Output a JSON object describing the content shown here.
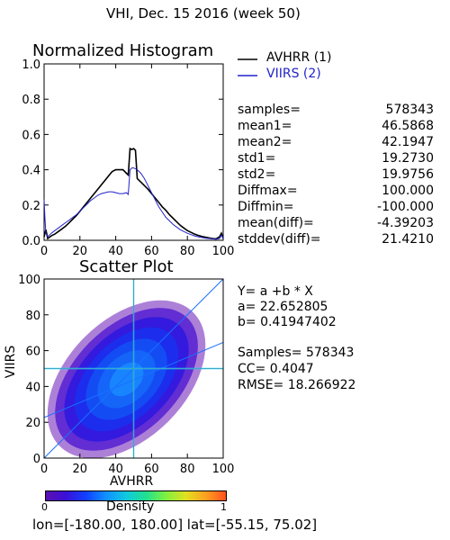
{
  "page_title": "VHI,  Dec. 15 2016 (week 50)",
  "footer": "lon=[-180.00, 180.00] lat=[-55.15, 75.02]",
  "colors": {
    "avhrr": "#000000",
    "viirs": "#2222cc",
    "grid": "#555555"
  },
  "stats": [
    {
      "label": "samples=",
      "value": "578343"
    },
    {
      "label": "mean1=",
      "value": "46.5868"
    },
    {
      "label": "mean2=",
      "value": "42.1947"
    },
    {
      "label": "std1=",
      "value": "19.2730"
    },
    {
      "label": "std2=",
      "value": "19.9756"
    },
    {
      "label": "Diffmax=",
      "value": "100.000"
    },
    {
      "label": "Diffmin=",
      "value": "-100.000"
    },
    {
      "label": "mean(diff)=",
      "value": "-4.39203"
    },
    {
      "label": "stddev(diff)=",
      "value": "21.4210"
    }
  ],
  "fit": {
    "equation": "Y= a +b * X",
    "a": "a= 22.652805",
    "b": "b= 0.41947402",
    "samples": "Samples= 578343",
    "cc": "CC=  0.4047",
    "rmse": "RMSE= 18.266922"
  },
  "colorbar": {
    "label": "Density",
    "min_label": "0",
    "max_label": "1"
  },
  "chart_data": [
    {
      "type": "line",
      "title": "Normalized Histogram",
      "xlabel": "",
      "ylabel": "",
      "xlim": [
        0,
        100
      ],
      "ylim": [
        0,
        1
      ],
      "x_ticks": [
        0,
        20,
        40,
        60,
        80,
        100
      ],
      "y_ticks": [
        "0.0",
        "0.2",
        "0.4",
        "0.6",
        "0.8",
        "1.0"
      ],
      "legend_position": "top-right",
      "series": [
        {
          "name": "AVHRR (1)",
          "x": [
            0,
            1,
            2,
            4,
            6,
            8,
            10,
            12,
            14,
            16,
            18,
            20,
            22,
            24,
            26,
            28,
            30,
            32,
            34,
            36,
            38,
            40,
            42,
            44,
            46,
            47,
            48,
            49,
            50,
            51,
            52,
            54,
            56,
            58,
            60,
            62,
            64,
            66,
            68,
            70,
            72,
            74,
            76,
            78,
            80,
            82,
            84,
            86,
            88,
            90,
            92,
            94,
            96,
            98,
            99,
            100
          ],
          "y": [
            0.02,
            0.06,
            0.01,
            0.025,
            0.035,
            0.05,
            0.065,
            0.08,
            0.1,
            0.12,
            0.14,
            0.165,
            0.19,
            0.215,
            0.24,
            0.265,
            0.29,
            0.315,
            0.34,
            0.365,
            0.39,
            0.4,
            0.4,
            0.4,
            0.38,
            0.37,
            0.52,
            0.515,
            0.52,
            0.51,
            0.35,
            0.33,
            0.31,
            0.29,
            0.265,
            0.24,
            0.215,
            0.19,
            0.17,
            0.145,
            0.125,
            0.105,
            0.085,
            0.07,
            0.055,
            0.045,
            0.035,
            0.028,
            0.022,
            0.018,
            0.014,
            0.01,
            0.008,
            0.02,
            0.04,
            0.01
          ]
        },
        {
          "name": "VIIRS (2)",
          "x": [
            0,
            0.5,
            1,
            2,
            4,
            6,
            8,
            10,
            12,
            14,
            16,
            18,
            20,
            22,
            24,
            26,
            28,
            30,
            32,
            34,
            36,
            38,
            40,
            42,
            44,
            46,
            47,
            48,
            49,
            50,
            52,
            54,
            56,
            58,
            60,
            62,
            64,
            66,
            68,
            70,
            72,
            74,
            76,
            78,
            80,
            82,
            84,
            86,
            88,
            90,
            92,
            94,
            96,
            98,
            99,
            100
          ],
          "y": [
            0.23,
            0.12,
            0.04,
            0.02,
            0.04,
            0.055,
            0.07,
            0.085,
            0.1,
            0.115,
            0.13,
            0.145,
            0.165,
            0.185,
            0.205,
            0.225,
            0.24,
            0.255,
            0.265,
            0.27,
            0.275,
            0.275,
            0.27,
            0.265,
            0.265,
            0.27,
            0.26,
            0.4,
            0.41,
            0.41,
            0.4,
            0.38,
            0.35,
            0.31,
            0.27,
            0.23,
            0.19,
            0.16,
            0.13,
            0.11,
            0.09,
            0.075,
            0.06,
            0.05,
            0.04,
            0.032,
            0.025,
            0.02,
            0.016,
            0.012,
            0.01,
            0.008,
            0.006,
            0.01,
            0.03,
            0.01
          ]
        }
      ]
    },
    {
      "type": "scatter",
      "title": "Scatter Plot",
      "xlabel": "AVHRR",
      "ylabel": "VIIRS",
      "xlim": [
        0,
        100
      ],
      "ylim": [
        0,
        100
      ],
      "x_ticks": [
        0,
        20,
        40,
        60,
        80,
        100
      ],
      "y_ticks": [
        0,
        20,
        40,
        60,
        80,
        100
      ],
      "density_colormap": "rainbow",
      "reference_lines": {
        "x": 50,
        "y": 50
      },
      "fit_line": {
        "a": 22.652805,
        "b": 0.41947402
      }
    }
  ]
}
